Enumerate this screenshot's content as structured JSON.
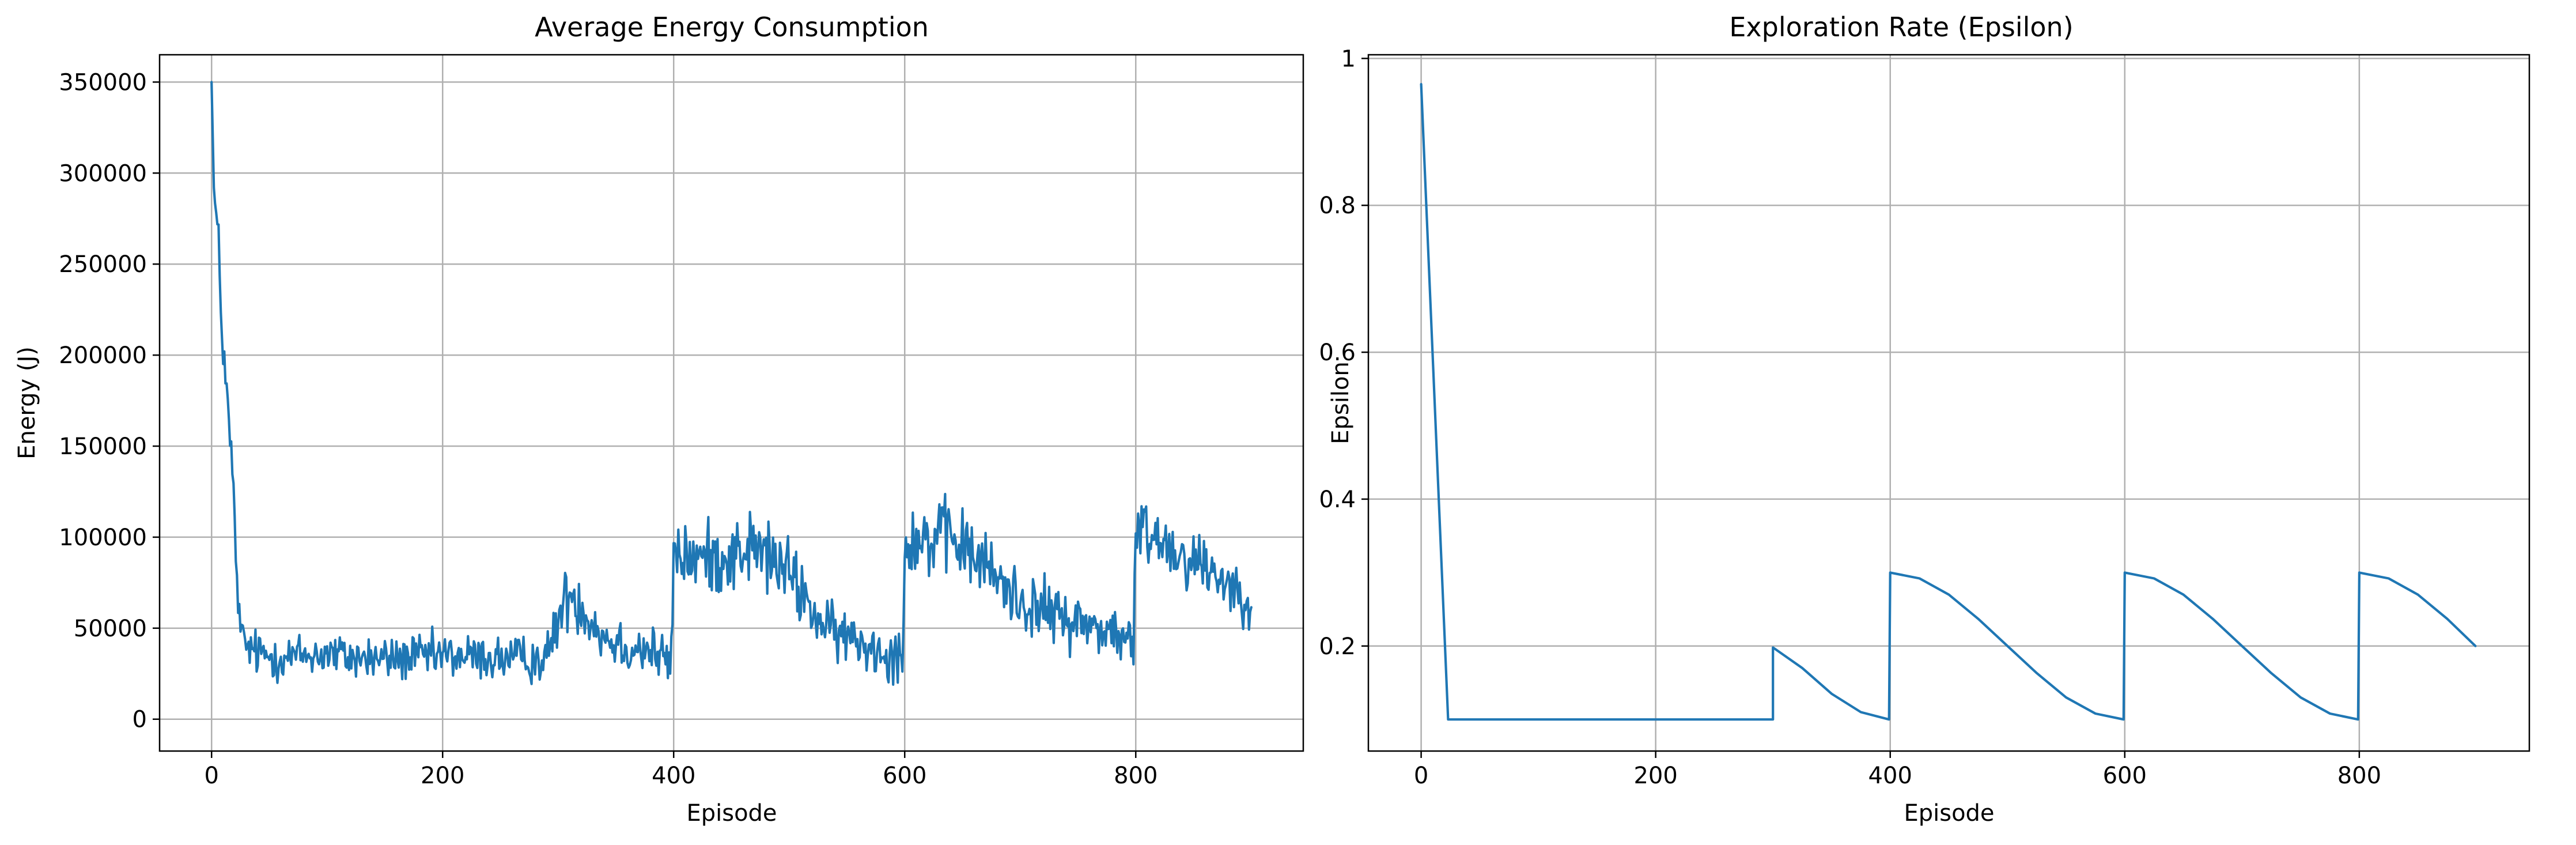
{
  "chart_data": [
    {
      "type": "line",
      "title": "Average Energy Consumption",
      "xlabel": "Episode",
      "ylabel": "Energy (J)",
      "xlim": [
        -45,
        945
      ],
      "ylim": [
        -17500,
        365000
      ],
      "xticks": [
        0,
        200,
        400,
        600,
        800
      ],
      "yticks": [
        0,
        50000,
        100000,
        150000,
        200000,
        250000,
        300000,
        350000
      ],
      "grid": true,
      "series": [
        {
          "color": "#1f77b4",
          "style": "noisy",
          "x": [
            0,
            2,
            4,
            6,
            8,
            10,
            12,
            14,
            16,
            18,
            20,
            22,
            25,
            30,
            40,
            60,
            80,
            100,
            120,
            150,
            180,
            200,
            230,
            260,
            290,
            300,
            310,
            320,
            340,
            360,
            380,
            398,
            400,
            402,
            420,
            450,
            470,
            500,
            530,
            550,
            580,
            598,
            600,
            602,
            620,
            640,
            660,
            700,
            740,
            780,
            798,
            800,
            802,
            820,
            840,
            860,
            880,
            900
          ],
          "values": [
            350000,
            290000,
            275000,
            260000,
            225000,
            205000,
            190000,
            170000,
            150000,
            140000,
            105000,
            75000,
            48000,
            40000,
            36000,
            34000,
            35000,
            36000,
            34000,
            33000,
            34000,
            35000,
            34000,
            33000,
            33000,
            55000,
            70000,
            62000,
            45000,
            40000,
            38000,
            30000,
            95000,
            90000,
            88000,
            90000,
            95000,
            80000,
            50000,
            45000,
            38000,
            35000,
            90000,
            100000,
            98000,
            100000,
            90000,
            65000,
            55000,
            48000,
            40000,
            95000,
            105000,
            100000,
            90000,
            85000,
            75000,
            65000
          ],
          "spread": [
            0,
            12000,
            12000,
            12000,
            12000,
            12000,
            12000,
            12000,
            12000,
            12000,
            10000,
            8000,
            9000,
            10000,
            11000,
            11000,
            11000,
            11000,
            11000,
            11000,
            11000,
            11000,
            11000,
            11000,
            11000,
            14000,
            16000,
            14000,
            13000,
            13000,
            13000,
            13000,
            16000,
            16000,
            16000,
            18000,
            18000,
            17000,
            13000,
            13000,
            13000,
            13000,
            17000,
            18000,
            18000,
            18000,
            17000,
            15000,
            14000,
            13000,
            13000,
            16000,
            16000,
            16000,
            15000,
            15000,
            14000,
            12000
          ]
        }
      ]
    },
    {
      "type": "line",
      "title": "Exploration Rate (Epsilon)",
      "xlabel": "Episode",
      "ylabel": "Epsilon",
      "xlim": [
        -45,
        945
      ],
      "ylim": [
        0.057,
        1.005
      ],
      "xticks": [
        0,
        200,
        400,
        600,
        800
      ],
      "yticks": [
        0.2,
        0.4,
        0.6,
        0.8,
        1.0
      ],
      "grid": true,
      "series": [
        {
          "color": "#1f77b4",
          "style": "smooth",
          "x": [
            0,
            23,
            300,
            300,
            325,
            350,
            375,
            399,
            400,
            425,
            450,
            475,
            500,
            525,
            550,
            575,
            599,
            600,
            625,
            650,
            675,
            700,
            725,
            750,
            775,
            799,
            800,
            825,
            850,
            875,
            899
          ],
          "values": [
            0.965,
            0.1,
            0.1,
            0.198,
            0.17,
            0.135,
            0.11,
            0.1,
            0.3,
            0.292,
            0.27,
            0.237,
            0.2,
            0.163,
            0.13,
            0.108,
            0.1,
            0.3,
            0.292,
            0.27,
            0.237,
            0.2,
            0.163,
            0.13,
            0.108,
            0.1,
            0.3,
            0.292,
            0.27,
            0.237,
            0.2
          ]
        }
      ]
    }
  ]
}
